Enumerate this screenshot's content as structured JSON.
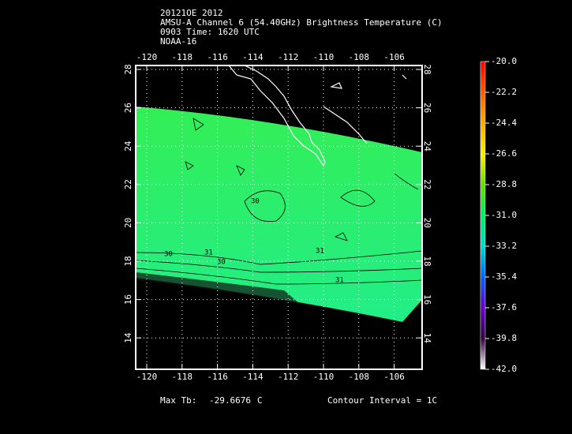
{
  "header": {
    "lines": [
      "20121OE 2012",
      "AMSU-A Channel 6 (54.40GHz) Brightness Temperature (C)",
      "0903 Time: 1620 UTC",
      "NOAA-16"
    ]
  },
  "map": {
    "lon_ticks": [
      -120,
      -118,
      -116,
      -114,
      -112,
      -110,
      -108,
      -106
    ],
    "lat_ticks": [
      14,
      16,
      18,
      20,
      22,
      24,
      26,
      28
    ],
    "contour_labels": [
      "30",
      "31",
      "30",
      "31",
      "30",
      "31"
    ]
  },
  "colorbar": {
    "ticks": [
      {
        "value": -20.0,
        "label": "-20.0"
      },
      {
        "value": -22.2,
        "label": "-22.2"
      },
      {
        "value": -24.4,
        "label": "-24.4"
      },
      {
        "value": -26.6,
        "label": "-26.6"
      },
      {
        "value": -28.8,
        "label": "-28.8"
      },
      {
        "value": -31.0,
        "label": "-31.0"
      },
      {
        "value": -33.2,
        "label": "-33.2"
      },
      {
        "value": -35.4,
        "label": "-35.4"
      },
      {
        "value": -37.6,
        "label": "-37.6"
      },
      {
        "value": -39.8,
        "label": "-39.8"
      },
      {
        "value": -42.0,
        "label": "-42.0"
      }
    ]
  },
  "footer": {
    "max_label": "Max Tb:",
    "max_value": "-29.6676",
    "max_unit": "C",
    "contour_interval": "Contour Interval = 1C"
  }
}
